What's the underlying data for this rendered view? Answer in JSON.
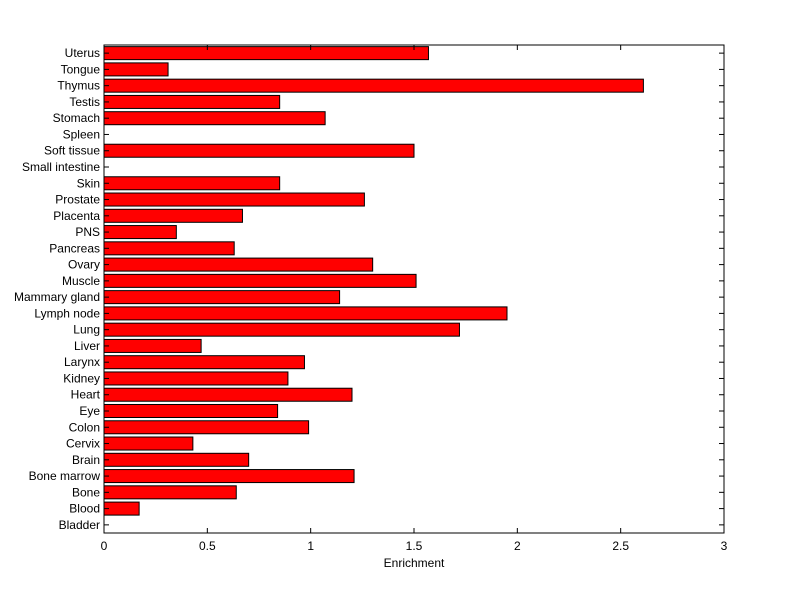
{
  "chart_data": {
    "type": "bar",
    "orientation": "horizontal",
    "title": "",
    "xlabel": "Enrichment",
    "ylabel": "",
    "xlim": [
      0,
      3
    ],
    "xticks": [
      0,
      0.5,
      1,
      1.5,
      2,
      2.5,
      3
    ],
    "xtick_labels": [
      "0",
      "0.5",
      "1",
      "1.5",
      "2",
      "2.5",
      "3"
    ],
    "grid": false,
    "legend": "none",
    "bar_color": "#ff0000",
    "bar_edge_color": "#000000",
    "categories": [
      "Bladder",
      "Blood",
      "Bone",
      "Bone marrow",
      "Brain",
      "Cervix",
      "Colon",
      "Eye",
      "Heart",
      "Kidney",
      "Larynx",
      "Liver",
      "Lung",
      "Lymph node",
      "Mammary gland",
      "Muscle",
      "Ovary",
      "Pancreas",
      "PNS",
      "Placenta",
      "Prostate",
      "Skin",
      "Small intestine",
      "Soft tissue",
      "Spleen",
      "Stomach",
      "Testis",
      "Thymus",
      "Tongue",
      "Uterus"
    ],
    "values": [
      0,
      0.17,
      0.64,
      1.21,
      0.7,
      0.43,
      0.99,
      0.84,
      1.2,
      0.89,
      0.97,
      0.47,
      1.72,
      1.95,
      1.14,
      1.51,
      1.3,
      0.63,
      0.35,
      0.67,
      1.26,
      0.85,
      0,
      1.5,
      0,
      1.07,
      0.85,
      2.61,
      0.31,
      1.57
    ]
  }
}
